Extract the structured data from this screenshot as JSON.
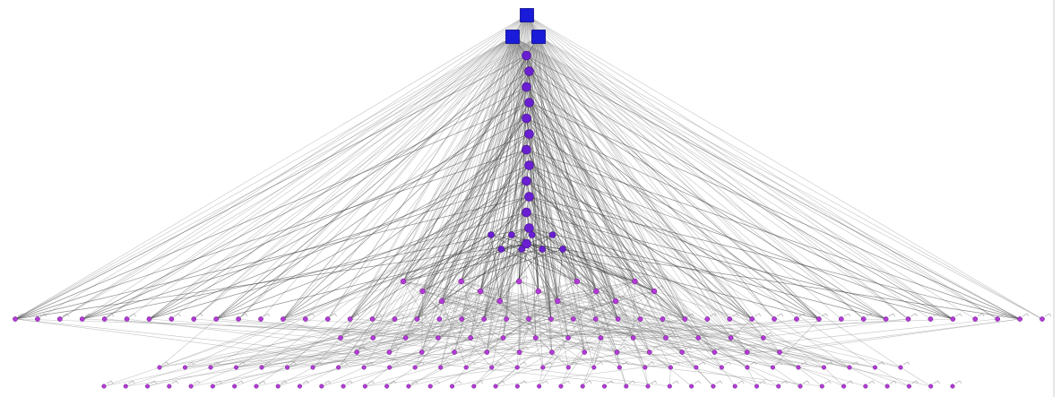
{
  "graph": {
    "colors": {
      "root": "#1a1ad9",
      "spine": "#6a1fd1",
      "leaf": "#b23bd6",
      "edge": "#7a7a7a"
    },
    "levels": {
      "roots": 3,
      "spine_nodes": 13,
      "fan_level": 8,
      "mid_level": 14,
      "wide_level": 47,
      "lower_level": 28,
      "bottom_row_a": 30,
      "bottom_row_b": 40
    }
  }
}
